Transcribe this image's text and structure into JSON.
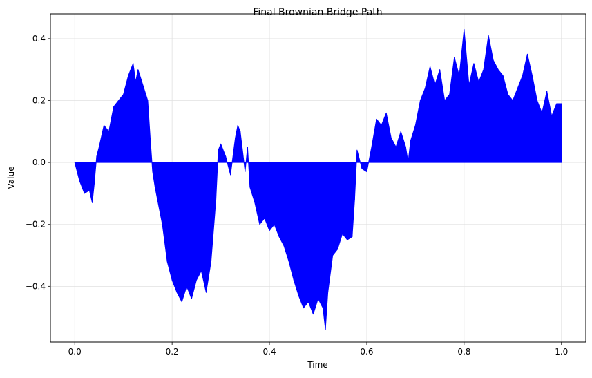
{
  "chart_data": {
    "type": "area",
    "title": "Final Brownian Bridge Path",
    "xlabel": "Time",
    "ylabel": "Value",
    "xlim": [
      -0.05,
      1.05
    ],
    "ylim": [
      -0.58,
      0.48
    ],
    "xticks": [
      0.0,
      0.2,
      0.4,
      0.6,
      0.8,
      1.0
    ],
    "xtick_labels": [
      "0.0",
      "0.2",
      "0.4",
      "0.6",
      "0.8",
      "1.0"
    ],
    "yticks": [
      -0.4,
      -0.2,
      0.0,
      0.2,
      0.4
    ],
    "ytick_labels": [
      "−0.4",
      "−0.2",
      "0.0",
      "0.2",
      "0.4"
    ],
    "grid": true,
    "baseline": 0,
    "color": "#0000ff",
    "series": [
      {
        "x": [
          0.0,
          0.01,
          0.02,
          0.03,
          0.036,
          0.04,
          0.045,
          0.05,
          0.06,
          0.07,
          0.08,
          0.09,
          0.1,
          0.11,
          0.12,
          0.125,
          0.13,
          0.14,
          0.15,
          0.155,
          0.16,
          0.165,
          0.17,
          0.18,
          0.19,
          0.2,
          0.21,
          0.22,
          0.23,
          0.24,
          0.25,
          0.26,
          0.27,
          0.28,
          0.285,
          0.29,
          0.295,
          0.3,
          0.31,
          0.32,
          0.33,
          0.335,
          0.34,
          0.35,
          0.355,
          0.36,
          0.37,
          0.38,
          0.39,
          0.4,
          0.41,
          0.42,
          0.43,
          0.44,
          0.45,
          0.46,
          0.47,
          0.48,
          0.49,
          0.5,
          0.51,
          0.515,
          0.52,
          0.53,
          0.54,
          0.55,
          0.56,
          0.57,
          0.575,
          0.58,
          0.59,
          0.6,
          0.61,
          0.62,
          0.63,
          0.64,
          0.65,
          0.66,
          0.67,
          0.68,
          0.685,
          0.69,
          0.7,
          0.71,
          0.72,
          0.73,
          0.74,
          0.75,
          0.76,
          0.77,
          0.78,
          0.79,
          0.8,
          0.81,
          0.82,
          0.83,
          0.84,
          0.85,
          0.86,
          0.87,
          0.88,
          0.89,
          0.9,
          0.91,
          0.92,
          0.93,
          0.94,
          0.95,
          0.96,
          0.97,
          0.98,
          0.99,
          1.0
        ],
        "y": [
          0.0,
          -0.06,
          -0.1,
          -0.09,
          -0.13,
          -0.07,
          0.02,
          0.05,
          0.12,
          0.1,
          0.18,
          0.2,
          0.22,
          0.28,
          0.32,
          0.26,
          0.3,
          0.25,
          0.2,
          0.08,
          -0.03,
          -0.08,
          -0.12,
          -0.2,
          -0.32,
          -0.38,
          -0.42,
          -0.45,
          -0.4,
          -0.44,
          -0.38,
          -0.35,
          -0.42,
          -0.32,
          -0.22,
          -0.12,
          0.04,
          0.06,
          0.02,
          -0.04,
          0.08,
          0.12,
          0.1,
          -0.03,
          0.05,
          -0.08,
          -0.13,
          -0.2,
          -0.18,
          -0.22,
          -0.2,
          -0.24,
          -0.27,
          -0.32,
          -0.38,
          -0.43,
          -0.47,
          -0.45,
          -0.49,
          -0.44,
          -0.47,
          -0.54,
          -0.42,
          -0.3,
          -0.28,
          -0.23,
          -0.25,
          -0.24,
          -0.12,
          0.04,
          -0.02,
          -0.03,
          0.05,
          0.14,
          0.12,
          0.16,
          0.08,
          0.05,
          0.1,
          0.05,
          0.0,
          0.07,
          0.12,
          0.2,
          0.24,
          0.31,
          0.25,
          0.3,
          0.2,
          0.22,
          0.34,
          0.28,
          0.43,
          0.25,
          0.32,
          0.26,
          0.3,
          0.41,
          0.33,
          0.3,
          0.28,
          0.22,
          0.2,
          0.24,
          0.28,
          0.35,
          0.28,
          0.2,
          0.16,
          0.23,
          0.15,
          0.19,
          0.19
        ]
      }
    ]
  }
}
